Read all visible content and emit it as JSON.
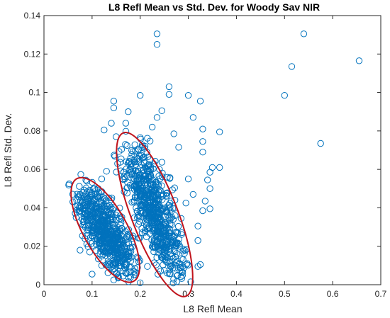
{
  "chart_data": {
    "type": "scatter",
    "title": "L8 Refl Mean vs Std. Dev. for Woody Sav NIR",
    "xlabel": "L8 Refl Mean",
    "ylabel": "L8 Refl Std. Dev.",
    "xlim": [
      0,
      0.7
    ],
    "ylim": [
      0,
      0.14
    ],
    "xticks": [
      0,
      0.1,
      0.2,
      0.3,
      0.4,
      0.5,
      0.6,
      0.7
    ],
    "xtick_labels": [
      "0",
      "0.1",
      "0.2",
      "0.3",
      "0.4",
      "0.5",
      "0.6",
      "0.7"
    ],
    "yticks": [
      0,
      0.02,
      0.04,
      0.06,
      0.08,
      0.1,
      0.12,
      0.14
    ],
    "ytick_labels": [
      "0",
      "0.02",
      "0.04",
      "0.06",
      "0.08",
      "0.1",
      "0.12",
      "0.14"
    ],
    "grid": false,
    "box": true,
    "marker": "open-circle",
    "colors": {
      "marker": "#0072BD",
      "ellipse": "#C0141C",
      "axis": "#262626"
    },
    "series": [
      {
        "values": [
          [
            0.235,
            0.1305
          ],
          [
            0.235,
            0.125
          ],
          [
            0.54,
            0.1305
          ],
          [
            0.515,
            0.1135
          ],
          [
            0.655,
            0.1165
          ],
          [
            0.5,
            0.0985
          ],
          [
            0.575,
            0.0735
          ],
          [
            0.26,
            0.103
          ],
          [
            0.26,
            0.099
          ],
          [
            0.2,
            0.0985
          ],
          [
            0.3,
            0.0985
          ],
          [
            0.325,
            0.0955
          ],
          [
            0.145,
            0.0955
          ],
          [
            0.145,
            0.092
          ],
          [
            0.175,
            0.09
          ],
          [
            0.245,
            0.0905
          ],
          [
            0.235,
            0.087
          ],
          [
            0.31,
            0.087
          ],
          [
            0.225,
            0.082
          ],
          [
            0.14,
            0.084
          ],
          [
            0.17,
            0.084
          ],
          [
            0.125,
            0.0805
          ],
          [
            0.365,
            0.0795
          ],
          [
            0.33,
            0.081
          ],
          [
            0.27,
            0.0785
          ],
          [
            0.15,
            0.077
          ],
          [
            0.21,
            0.072
          ],
          [
            0.28,
            0.0715
          ],
          [
            0.33,
            0.0745
          ],
          [
            0.33,
            0.069
          ],
          [
            0.22,
            0.065
          ],
          [
            0.24,
            0.06
          ],
          [
            0.345,
            0.0585
          ],
          [
            0.35,
            0.061
          ],
          [
            0.365,
            0.061
          ],
          [
            0.34,
            0.0545
          ],
          [
            0.345,
            0.05
          ],
          [
            0.335,
            0.0435
          ],
          [
            0.33,
            0.0385
          ],
          [
            0.345,
            0.0395
          ],
          [
            0.3,
            0.055
          ],
          [
            0.31,
            0.047
          ],
          [
            0.295,
            0.0425
          ],
          [
            0.285,
            0.0345
          ],
          [
            0.275,
            0.027
          ],
          [
            0.28,
            0.021
          ],
          [
            0.32,
            0.0305
          ],
          [
            0.32,
            0.023
          ],
          [
            0.325,
            0.0105
          ],
          [
            0.32,
            0.0095
          ],
          [
            0.305,
            0.0015
          ],
          [
            0.1,
            0.0055
          ],
          [
            0.095,
            0.017
          ],
          [
            0.08,
            0.0255
          ],
          [
            0.075,
            0.018
          ],
          [
            0.09,
            0.037
          ],
          [
            0.105,
            0.047
          ],
          [
            0.12,
            0.055
          ],
          [
            0.13,
            0.059
          ],
          [
            0.1,
            0.033
          ],
          [
            0.11,
            0.04
          ],
          [
            0.2,
            0.001
          ],
          [
            0.215,
            0.0095
          ],
          [
            0.145,
            0.0025
          ],
          [
            0.17,
            0.006
          ],
          [
            0.155,
            0.004
          ],
          [
            0.12,
            0.01
          ],
          [
            0.25,
            0.0075
          ]
        ]
      }
    ],
    "ellipses": [
      {
        "cx": 0.1275,
        "cy": 0.0285,
        "half_major_y": 0.0305,
        "half_minor_x": 0.0455,
        "angle_deg": -29
      },
      {
        "cx": 0.23,
        "cy": 0.0365,
        "half_major_y": 0.0455,
        "half_minor_x": 0.048,
        "angle_deg": -21
      }
    ]
  }
}
